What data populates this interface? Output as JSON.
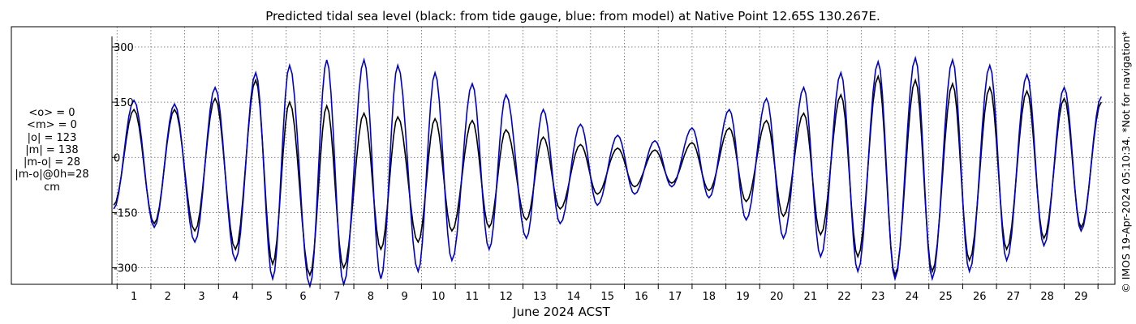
{
  "chart_data": {
    "type": "line",
    "title": "Predicted tidal sea level (black: from tide gauge, blue: from model) at Native Point 12.65S 130.267E.",
    "xlabel": "June 2024 ACST",
    "ylabel": "",
    "ylim": [
      -345,
      355
    ],
    "xlim": [
      0.35,
      30.0
    ],
    "y_ticks": [
      "-300",
      "-150",
      "0",
      "150",
      "300"
    ],
    "x_ticks": [
      "1",
      "2",
      "3",
      "4",
      "5",
      "6",
      "7",
      "8",
      "9",
      "10",
      "11",
      "12",
      "13",
      "14",
      "15",
      "16",
      "17",
      "18",
      "19",
      "20",
      "21",
      "22",
      "23",
      "24",
      "25",
      "26",
      "27",
      "28",
      "29"
    ],
    "grid": true,
    "series": [
      {
        "color": "#000000",
        "x": [
          0.4,
          1.0,
          1.6,
          2.2,
          2.8,
          3.4,
          4.0,
          4.6,
          5.1,
          5.6,
          6.2,
          6.7,
          7.2,
          7.8,
          8.3,
          8.8,
          9.4,
          9.9,
          10.4,
          11.0,
          11.5,
          12.0,
          12.6,
          13.1,
          13.6,
          14.2,
          14.7,
          15.3,
          15.8,
          16.4,
          16.9,
          17.5,
          18.0,
          18.6,
          19.1,
          19.7,
          20.2,
          20.8,
          21.3,
          21.9,
          22.4,
          23.0,
          23.5,
          24.1,
          24.6,
          25.2,
          25.7,
          26.3,
          26.8,
          27.4,
          27.9,
          28.5,
          29.0,
          29.6
        ],
        "y": [
          -130,
          130,
          -180,
          130,
          -200,
          160,
          -250,
          210,
          -290,
          150,
          -320,
          140,
          -300,
          120,
          -250,
          110,
          -230,
          105,
          -200,
          100,
          -190,
          75,
          -170,
          55,
          -140,
          35,
          -100,
          25,
          -80,
          20,
          -70,
          40,
          -90,
          80,
          -120,
          100,
          -160,
          120,
          -210,
          170,
          -270,
          220,
          -320,
          210,
          -310,
          200,
          -280,
          190,
          -250,
          180,
          -220,
          160,
          -190,
          150
        ]
      },
      {
        "color": "#0000cc",
        "x": [
          0.4,
          1.0,
          1.6,
          2.2,
          2.8,
          3.4,
          4.0,
          4.6,
          5.1,
          5.6,
          6.2,
          6.7,
          7.2,
          7.8,
          8.3,
          8.8,
          9.4,
          9.9,
          10.4,
          11.0,
          11.5,
          12.0,
          12.6,
          13.1,
          13.6,
          14.2,
          14.7,
          15.3,
          15.8,
          16.4,
          16.9,
          17.5,
          18.0,
          18.6,
          19.1,
          19.7,
          20.2,
          20.8,
          21.3,
          21.9,
          22.4,
          23.0,
          23.5,
          24.1,
          24.6,
          25.2,
          25.7,
          26.3,
          26.8,
          27.4,
          27.9,
          28.5,
          29.0,
          29.6
        ],
        "y": [
          -140,
          155,
          -190,
          145,
          -230,
          190,
          -280,
          230,
          -330,
          250,
          -350,
          265,
          -345,
          265,
          -330,
          250,
          -310,
          230,
          -280,
          200,
          -250,
          170,
          -220,
          130,
          -180,
          90,
          -130,
          60,
          -100,
          45,
          -80,
          80,
          -110,
          130,
          -170,
          160,
          -220,
          190,
          -270,
          230,
          -310,
          260,
          -330,
          270,
          -330,
          265,
          -310,
          250,
          -280,
          225,
          -240,
          190,
          -200,
          165
        ]
      }
    ]
  },
  "stats": {
    "mean_o": "<o> = 0",
    "mean_m": "<m> = 0",
    "abs_o": "|o| = 123",
    "abs_m": "|m| = 138",
    "abs_mo": "|m-o| = 28",
    "abs_mo_0h": "|m-o|@0h=28",
    "unit": "cm"
  },
  "side_text": "© IMOS 19-Apr-2024 05:10:34. *Not for navigation*",
  "colors": {
    "gauge": "#000000",
    "model": "#0000cc",
    "grid": "#666666"
  }
}
